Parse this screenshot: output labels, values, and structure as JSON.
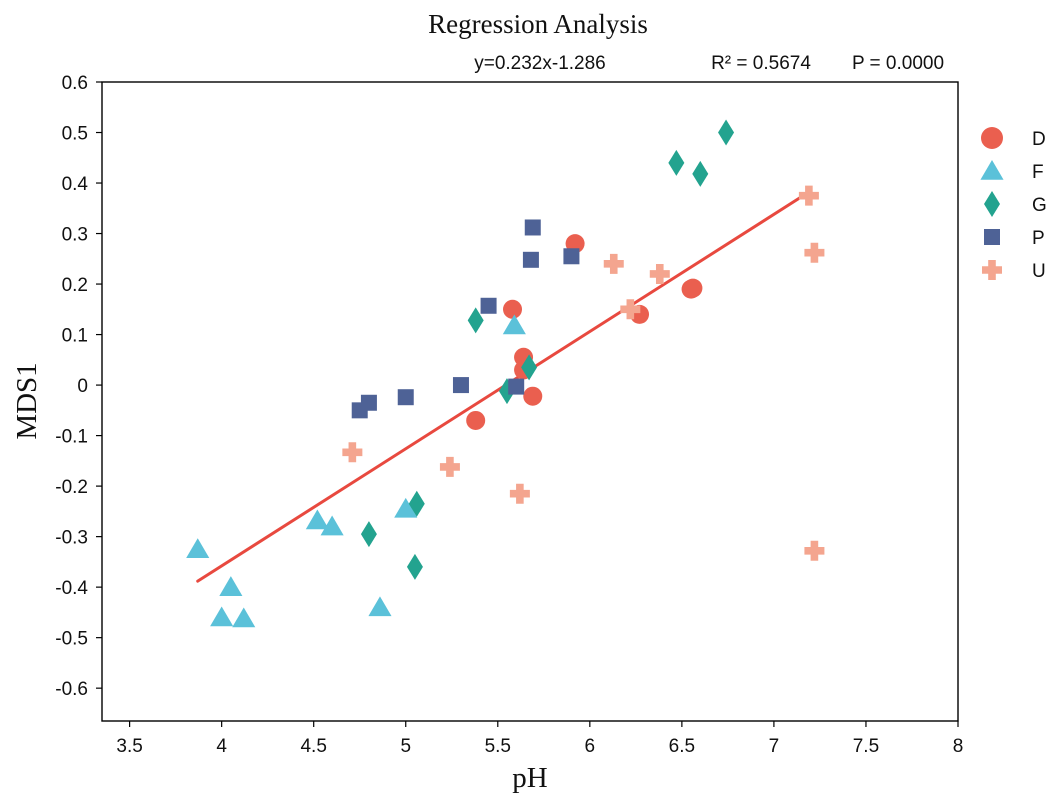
{
  "chart_data": {
    "type": "scatter",
    "title": "Regression Analysis",
    "xlabel": "pH",
    "ylabel": "MDS1",
    "xlim": [
      3.35,
      8.0
    ],
    "ylim": [
      -0.665,
      0.6
    ],
    "xticks": [
      3.5,
      4,
      4.5,
      5,
      5.5,
      6,
      6.5,
      7,
      7.5,
      8
    ],
    "xtick_labels": [
      "3.5",
      "4",
      "4.5",
      "5",
      "5.5",
      "6",
      "6.5",
      "7",
      "7.5",
      "8"
    ],
    "yticks": [
      0.6,
      0.5,
      0.4,
      0.3,
      0.2,
      0.1,
      0,
      -0.1,
      -0.2,
      -0.3,
      -0.4,
      -0.5,
      -0.6
    ],
    "ytick_labels": [
      "0.6",
      "0.5",
      "0.4",
      "0.3",
      "0.2",
      "0.1",
      "0",
      "-0.1",
      "-0.2",
      "-0.3",
      "-0.4",
      "-0.5",
      "-0.6"
    ],
    "grid": false,
    "legend_position": "right",
    "equation": "y=0.232x-1.286",
    "r_squared": "R² = 0.5674",
    "p_value": "P = 0.0000",
    "regression": {
      "slope": 0.232,
      "intercept": -1.286,
      "x_range": [
        3.87,
        7.2
      ],
      "color": "#e8493f"
    },
    "series": [
      {
        "name": "D",
        "marker": "circle",
        "color": "#ea5f4f",
        "points": [
          [
            5.92,
            0.28
          ],
          [
            5.58,
            0.15
          ],
          [
            5.64,
            0.055
          ],
          [
            5.64,
            0.03
          ],
          [
            5.69,
            -0.022
          ],
          [
            5.38,
            -0.07
          ],
          [
            6.27,
            0.14
          ],
          [
            6.55,
            0.19
          ],
          [
            6.56,
            0.192
          ]
        ]
      },
      {
        "name": "F",
        "marker": "triangle",
        "color": "#5bc1d9",
        "points": [
          [
            3.87,
            -0.325
          ],
          [
            4.05,
            -0.4
          ],
          [
            4.0,
            -0.46
          ],
          [
            4.12,
            -0.462
          ],
          [
            4.52,
            -0.268
          ],
          [
            4.6,
            -0.28
          ],
          [
            4.86,
            -0.44
          ],
          [
            5.0,
            -0.245
          ],
          [
            5.59,
            0.118
          ]
        ]
      },
      {
        "name": "G",
        "marker": "diamond",
        "color": "#23a38f",
        "points": [
          [
            6.74,
            0.5
          ],
          [
            6.47,
            0.44
          ],
          [
            6.6,
            0.418
          ],
          [
            5.38,
            0.128
          ],
          [
            5.67,
            0.035
          ],
          [
            5.55,
            -0.012
          ],
          [
            4.8,
            -0.295
          ],
          [
            5.06,
            -0.235
          ],
          [
            5.05,
            -0.36
          ]
        ]
      },
      {
        "name": "P",
        "marker": "square",
        "color": "#4e6296",
        "points": [
          [
            5.69,
            0.312
          ],
          [
            5.68,
            0.248
          ],
          [
            5.9,
            0.255
          ],
          [
            5.45,
            0.157
          ],
          [
            5.3,
            0.0
          ],
          [
            5.6,
            -0.003
          ],
          [
            5.0,
            -0.024
          ],
          [
            4.8,
            -0.035
          ],
          [
            4.75,
            -0.05
          ]
        ]
      },
      {
        "name": "U",
        "marker": "plus",
        "color": "#f4a58f",
        "points": [
          [
            7.19,
            0.375
          ],
          [
            7.22,
            0.262
          ],
          [
            6.13,
            0.24
          ],
          [
            6.38,
            0.22
          ],
          [
            6.22,
            0.15
          ],
          [
            4.71,
            -0.133
          ],
          [
            5.24,
            -0.162
          ],
          [
            5.62,
            -0.215
          ],
          [
            7.22,
            -0.328
          ]
        ]
      }
    ]
  }
}
